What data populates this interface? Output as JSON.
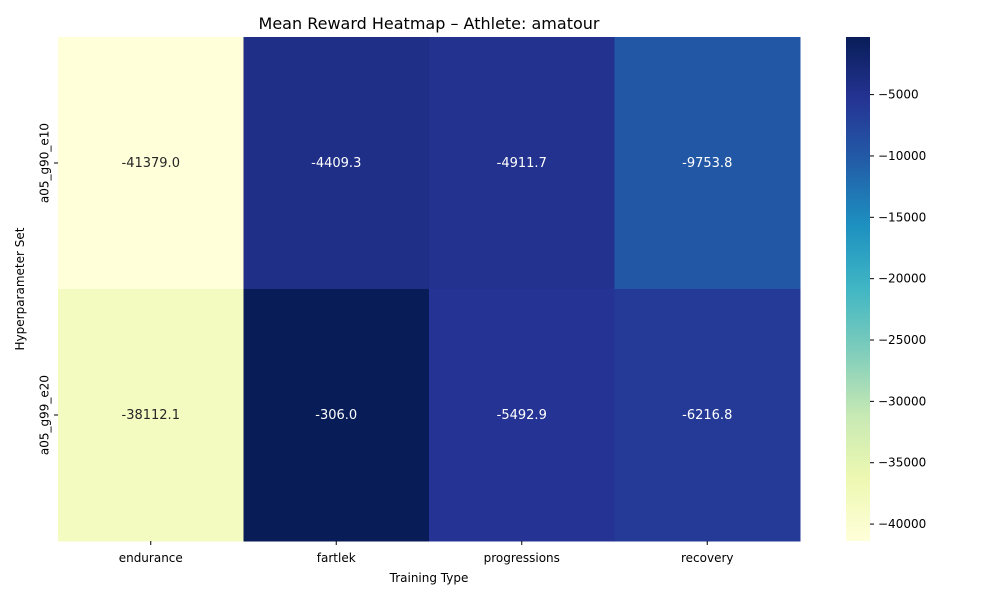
{
  "chart_data": {
    "type": "heatmap",
    "title": "Mean Reward Heatmap – Athlete: amatour",
    "xlabel": "Training Type",
    "ylabel": "Hyperparameter Set",
    "x_categories": [
      "endurance",
      "fartlek",
      "progressions",
      "recovery"
    ],
    "y_categories": [
      "a05_g90_e10",
      "a05_g99_e20"
    ],
    "values": [
      [
        -41379.0,
        -4409.3,
        -4911.7,
        -9753.8
      ],
      [
        -38112.1,
        -306.0,
        -5492.9,
        -6216.8
      ]
    ],
    "value_labels": [
      [
        "-41379.0",
        "-4409.3",
        "-4911.7",
        "-9753.8"
      ],
      [
        "-38112.1",
        "-306.0",
        "-5492.9",
        "-6216.8"
      ]
    ],
    "colorbar": {
      "colormap": "YlGnBu",
      "range": [
        -41379.0,
        -306.0
      ],
      "ticks": [
        -40000,
        -35000,
        -30000,
        -25000,
        -20000,
        -15000,
        -10000,
        -5000
      ],
      "tick_labels": [
        "−40000",
        "−35000",
        "−30000",
        "−25000",
        "−20000",
        "−15000",
        "−10000",
        "−5000"
      ]
    }
  }
}
